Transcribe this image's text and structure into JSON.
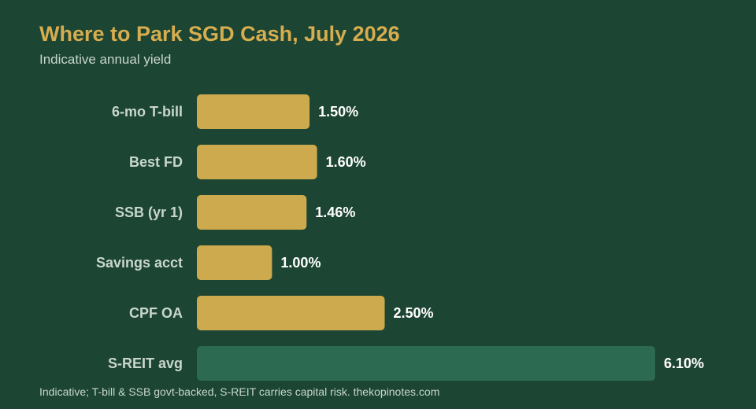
{
  "chart_data": {
    "type": "bar",
    "orientation": "horizontal",
    "title": "Where to Park SGD Cash, July 2026",
    "subtitle": "Indicative annual yield",
    "categories": [
      "6-mo T-bill",
      "Best FD",
      "SSB (yr 1)",
      "Savings acct",
      "CPF OA",
      "S-REIT avg"
    ],
    "values": [
      1.5,
      1.6,
      1.46,
      1.0,
      2.5,
      6.1
    ],
    "value_labels": [
      "1.50%",
      "1.60%",
      "1.46%",
      "1.00%",
      "2.50%",
      "6.10%"
    ],
    "unit": "%",
    "xlim": [
      0,
      6.1
    ],
    "grid": false,
    "legend": "none",
    "colors": {
      "default_bar": "#cdaa4e",
      "highlight_bar": "#2d6a52",
      "highlight_category": "S-REIT avg",
      "background": "#1c4533",
      "title": "#d6ad4f"
    },
    "footnote": "Indicative; T-bill & SSB govt-backed, S-REIT carries capital risk. thekopinotes.com"
  }
}
